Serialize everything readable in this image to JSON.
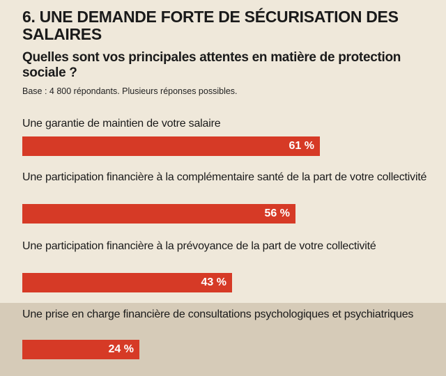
{
  "header": {
    "title": "6. UNE DEMANDE FORTE DE SÉCURISATION DES SALAIRES",
    "question": "Quelles sont vos principales attentes en matière de protection sociale ?",
    "base": "Base : 4 800 répondants. Plusieurs réponses possibles."
  },
  "chart_data": {
    "type": "bar",
    "orientation": "horizontal",
    "title": "6. UNE DEMANDE FORTE DE SÉCURISATION DES SALAIRES",
    "subtitle": "Quelles sont vos principales attentes en matière de protection sociale ?",
    "categories": [
      "Une garantie de maintien de votre salaire",
      "Une participation financière à la complémentaire santé de la part de votre collectivité",
      "Une participation financière à la prévoyance de la part de votre collectivité",
      "Une prise en charge financière de consultations psychologiques et psychiatriques"
    ],
    "values": [
      61,
      56,
      43,
      24
    ],
    "value_labels": [
      "61 %",
      "56 %",
      "43 %",
      "24 %"
    ],
    "unit": "%",
    "xlim": [
      0,
      100
    ],
    "bar_color": "#d63a26",
    "grid": false,
    "legend": "none"
  },
  "colors": {
    "background": "#efe8da",
    "highlight_band": "#d6cbb8",
    "bar": "#d63a26",
    "bar_text": "#ffffff"
  }
}
